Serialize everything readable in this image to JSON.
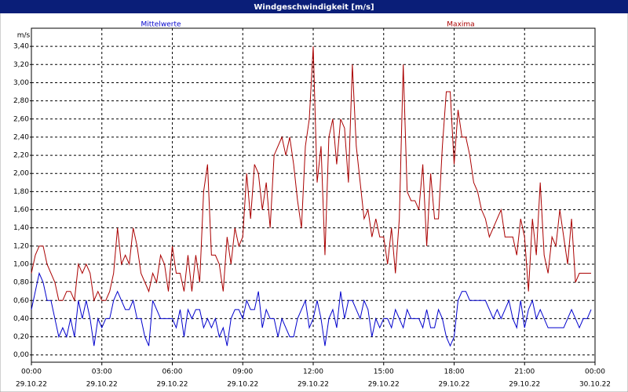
{
  "chart_data": {
    "type": "line",
    "title": "Windgeschwindigkeit [m/s]",
    "ylabel": "m/s",
    "x": [
      0,
      10,
      20,
      30,
      40,
      50,
      60,
      70,
      80,
      90,
      100,
      110,
      120,
      130,
      140,
      150,
      160,
      170,
      180,
      190,
      200,
      210,
      220,
      230,
      240,
      250,
      260,
      270,
      280,
      290,
      300,
      310,
      320,
      330,
      340,
      350,
      360,
      370,
      380,
      390,
      400,
      410,
      420,
      430,
      440,
      450,
      460,
      470,
      480,
      490,
      500,
      510,
      520,
      530,
      540,
      550,
      560,
      570,
      580,
      590,
      600,
      610,
      620,
      630,
      640,
      650,
      660,
      670,
      680,
      690,
      700,
      710,
      720,
      730,
      740,
      750,
      760,
      770,
      780,
      790,
      800,
      810,
      820,
      830,
      840,
      850,
      860,
      870,
      880,
      890,
      900,
      910,
      920,
      930,
      940,
      950,
      960,
      970,
      980,
      990,
      1000,
      1010,
      1020,
      1030,
      1040,
      1050,
      1060,
      1070,
      1080,
      1090,
      1100,
      1110,
      1120,
      1130,
      1140,
      1150,
      1160,
      1170,
      1180,
      1190,
      1200,
      1210,
      1220,
      1230,
      1240,
      1250,
      1260,
      1270,
      1280,
      1290,
      1300,
      1310,
      1320,
      1330,
      1340,
      1350,
      1360,
      1370,
      1380,
      1390,
      1400,
      1410,
      1420,
      1430
    ],
    "series": [
      {
        "name": "Mittelwerte",
        "color": "#0000cc",
        "values": [
          0.5,
          0.7,
          0.9,
          0.8,
          0.6,
          0.6,
          0.4,
          0.2,
          0.3,
          0.2,
          0.4,
          0.2,
          0.6,
          0.4,
          0.6,
          0.4,
          0.1,
          0.4,
          0.3,
          0.4,
          0.4,
          0.6,
          0.7,
          0.6,
          0.5,
          0.5,
          0.6,
          0.4,
          0.4,
          0.2,
          0.1,
          0.6,
          0.5,
          0.4,
          0.4,
          0.4,
          0.4,
          0.3,
          0.5,
          0.2,
          0.5,
          0.4,
          0.5,
          0.5,
          0.3,
          0.4,
          0.3,
          0.4,
          0.2,
          0.3,
          0.1,
          0.4,
          0.5,
          0.5,
          0.4,
          0.6,
          0.5,
          0.5,
          0.7,
          0.3,
          0.5,
          0.4,
          0.4,
          0.2,
          0.4,
          0.3,
          0.2,
          0.2,
          0.4,
          0.5,
          0.6,
          0.3,
          0.4,
          0.6,
          0.4,
          0.1,
          0.4,
          0.5,
          0.3,
          0.7,
          0.4,
          0.6,
          0.6,
          0.5,
          0.4,
          0.6,
          0.5,
          0.2,
          0.4,
          0.3,
          0.4,
          0.4,
          0.3,
          0.5,
          0.4,
          0.3,
          0.5,
          0.4,
          0.4,
          0.4,
          0.3,
          0.5,
          0.3,
          0.3,
          0.5,
          0.4,
          0.2,
          0.1,
          0.2,
          0.6,
          0.7,
          0.7,
          0.6,
          0.6,
          0.6,
          0.6,
          0.6,
          0.5,
          0.4,
          0.5,
          0.4,
          0.5,
          0.6,
          0.4,
          0.3,
          0.6,
          0.3,
          0.5,
          0.6,
          0.4,
          0.5,
          0.4,
          0.3,
          0.3,
          0.3,
          0.3,
          0.3,
          0.4,
          0.5,
          0.4,
          0.3,
          0.4,
          0.4,
          0.5
        ]
      },
      {
        "name": "Maxima",
        "color": "#aa0000",
        "values": [
          0.9,
          1.1,
          1.2,
          1.2,
          1.0,
          0.9,
          0.8,
          0.6,
          0.6,
          0.7,
          0.7,
          0.6,
          1.0,
          0.9,
          1.0,
          0.9,
          0.6,
          0.7,
          0.6,
          0.6,
          0.7,
          0.9,
          1.4,
          1.0,
          1.1,
          1.0,
          1.4,
          1.2,
          0.9,
          0.8,
          0.7,
          0.9,
          0.8,
          1.1,
          1.0,
          0.7,
          1.2,
          0.9,
          0.9,
          0.7,
          1.1,
          0.7,
          1.1,
          0.8,
          1.8,
          2.1,
          1.1,
          1.1,
          1.0,
          0.7,
          1.3,
          1.0,
          1.4,
          1.2,
          1.3,
          2.0,
          1.5,
          2.1,
          2.0,
          1.6,
          1.9,
          1.4,
          2.2,
          2.3,
          2.4,
          2.2,
          2.4,
          2.1,
          1.7,
          1.4,
          2.3,
          2.6,
          3.4,
          1.9,
          2.3,
          1.1,
          2.4,
          2.6,
          2.1,
          2.6,
          2.5,
          1.9,
          3.2,
          2.3,
          1.9,
          1.5,
          1.6,
          1.3,
          1.5,
          1.3,
          1.3,
          1.0,
          1.4,
          0.9,
          1.5,
          3.2,
          1.8,
          1.7,
          1.7,
          1.6,
          2.1,
          1.2,
          2.0,
          1.5,
          1.5,
          2.3,
          2.9,
          2.9,
          2.1,
          2.7,
          2.4,
          2.4,
          2.2,
          1.9,
          1.8,
          1.6,
          1.5,
          1.3,
          1.4,
          1.5,
          1.6,
          1.3,
          1.3,
          1.3,
          1.1,
          1.5,
          1.3,
          0.7,
          1.5,
          1.1,
          1.9,
          1.1,
          0.9,
          1.3,
          1.2,
          1.6,
          1.3,
          1.0,
          1.5,
          0.8,
          0.9,
          0.9,
          0.9,
          0.9
        ]
      }
    ],
    "xlim": [
      0,
      1440
    ],
    "xticks": [
      {
        "value": 0,
        "label": "00:00"
      },
      {
        "value": 180,
        "label": "03:00"
      },
      {
        "value": 360,
        "label": "06:00"
      },
      {
        "value": 540,
        "label": "09:00"
      },
      {
        "value": 720,
        "label": "12:00"
      },
      {
        "value": 900,
        "label": "15:00"
      },
      {
        "value": 1080,
        "label": "18:00"
      },
      {
        "value": 1260,
        "label": "21:00"
      },
      {
        "value": 1440,
        "label": "00:00"
      }
    ],
    "xtick_dates": [
      "29.10.22",
      "29.10.22",
      "29.10.22",
      "29.10.22",
      "29.10.22",
      "29.10.22",
      "29.10.22",
      "29.10.22",
      "30.10.22"
    ],
    "ylim": [
      -0.08,
      3.6
    ],
    "yticks": [
      {
        "value": 0,
        "label": "0,00"
      },
      {
        "value": 0.2,
        "label": "0,20"
      },
      {
        "value": 0.4,
        "label": "0,40"
      },
      {
        "value": 0.6,
        "label": "0,60"
      },
      {
        "value": 0.8,
        "label": "0,80"
      },
      {
        "value": 1.0,
        "label": "1,00"
      },
      {
        "value": 1.2,
        "label": "1,20"
      },
      {
        "value": 1.4,
        "label": "1,40"
      },
      {
        "value": 1.6,
        "label": "1,60"
      },
      {
        "value": 1.8,
        "label": "1,80"
      },
      {
        "value": 2.0,
        "label": "2,00"
      },
      {
        "value": 2.2,
        "label": "2,20"
      },
      {
        "value": 2.4,
        "label": "2,40"
      },
      {
        "value": 2.6,
        "label": "2,60"
      },
      {
        "value": 2.8,
        "label": "2,80"
      },
      {
        "value": 3.0,
        "label": "3,00"
      },
      {
        "value": 3.2,
        "label": "3,20"
      },
      {
        "value": 3.4,
        "label": "3,40"
      }
    ],
    "grid": true
  }
}
